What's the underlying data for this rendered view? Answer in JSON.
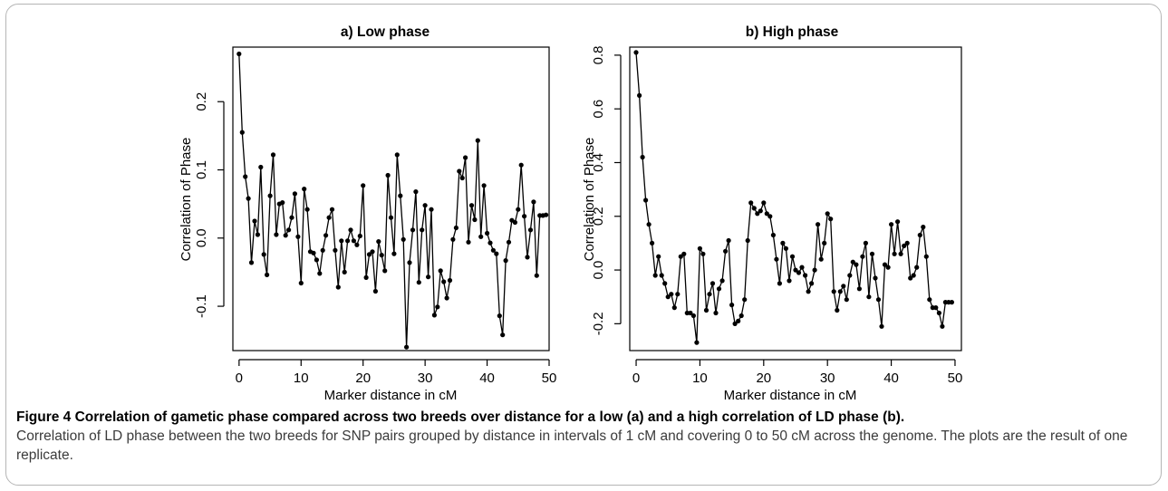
{
  "figure": {
    "label": "Figure 4",
    "caption_title": "Correlation of gametic phase compared across two breeds over distance for a low (a) and a high correlation of LD phase (b).",
    "caption_text": "Correlation of LD phase between the two breeds for SNP pairs grouped by distance in intervals of 1 cM and covering 0 to 50 cM across the genome. The plots are the result of one replicate."
  },
  "chart_data": [
    {
      "type": "line",
      "title": "a) Low phase",
      "xlabel": "Marker distance in cM",
      "ylabel": "Correlation of Phase",
      "xlim": [
        -1,
        50
      ],
      "ylim": [
        -0.165,
        0.28
      ],
      "xticks": [
        0,
        10,
        20,
        30,
        40,
        50
      ],
      "yticks": [
        -0.1,
        0.0,
        0.1,
        0.2
      ],
      "ytick_labels": [
        "-0.1",
        "0.0",
        "0.1",
        "0.2"
      ],
      "grid": false,
      "x": [
        0,
        0.5,
        1,
        1.5,
        2,
        2.5,
        3,
        3.5,
        4,
        4.5,
        5,
        5.5,
        6,
        6.5,
        7,
        7.5,
        8,
        8.5,
        9,
        9.5,
        10,
        10.5,
        11,
        11.5,
        12,
        12.5,
        13,
        13.5,
        14,
        14.5,
        15,
        15.5,
        16,
        16.5,
        17,
        17.5,
        18,
        18.5,
        19,
        19.5,
        20,
        20.5,
        21,
        21.5,
        22,
        22.5,
        23,
        23.5,
        24,
        24.5,
        25,
        25.5,
        26,
        26.5,
        27,
        27.5,
        28,
        28.5,
        29,
        29.5,
        30,
        30.5,
        31,
        31.5,
        32,
        32.5,
        33,
        33.5,
        34,
        34.5,
        35,
        35.5,
        36,
        36.5,
        37,
        37.5,
        38,
        38.5,
        39,
        39.5,
        40,
        40.5,
        41,
        41.5,
        42,
        42.5,
        43,
        43.5,
        44,
        44.5,
        45,
        45.5,
        46,
        46.5,
        47,
        47.5,
        48,
        48.5,
        49,
        49.5
      ],
      "series": [
        {
          "values": [
            0.27,
            0.155,
            0.09,
            0.058,
            -0.036,
            0.025,
            0.005,
            0.104,
            -0.024,
            -0.054,
            0.062,
            0.122,
            0.005,
            0.05,
            0.052,
            0.004,
            0.012,
            0.03,
            0.065,
            0.002,
            -0.066,
            0.072,
            0.042,
            -0.02,
            -0.022,
            -0.032,
            -0.052,
            -0.018,
            0.004,
            0.03,
            0.042,
            -0.018,
            -0.072,
            -0.004,
            -0.05,
            -0.004,
            0.012,
            -0.004,
            -0.01,
            0.003,
            0.077,
            -0.058,
            -0.024,
            -0.02,
            -0.078,
            -0.005,
            -0.025,
            -0.048,
            0.092,
            0.03,
            -0.023,
            0.122,
            0.062,
            -0.002,
            -0.16,
            -0.036,
            0.012,
            0.068,
            -0.065,
            0.012,
            0.048,
            -0.057,
            0.042,
            -0.113,
            -0.101,
            -0.048,
            -0.064,
            -0.088,
            -0.062,
            -0.002,
            0.015,
            0.098,
            0.088,
            0.118,
            -0.006,
            0.048,
            0.027,
            0.143,
            0.002,
            0.077,
            0.007,
            -0.007,
            -0.018,
            -0.023,
            -0.114,
            -0.142,
            -0.033,
            -0.006,
            0.026,
            0.023,
            0.042,
            0.107,
            0.032,
            -0.028,
            0.012,
            0.053,
            -0.055,
            0.033,
            0.033,
            0.034
          ]
        }
      ]
    },
    {
      "type": "line",
      "title": "b) High phase",
      "xlabel": "Marker distance in cM",
      "ylabel": "Correlation of Phase",
      "xlim": [
        -1,
        51
      ],
      "ylim": [
        -0.3,
        0.83
      ],
      "xticks": [
        0,
        10,
        20,
        30,
        40,
        50
      ],
      "yticks": [
        -0.2,
        0.0,
        0.2,
        0.4,
        0.6,
        0.8
      ],
      "ytick_labels": [
        "-0.2",
        "0.0",
        "0.2",
        "0.4",
        "0.6",
        "0.8"
      ],
      "grid": false,
      "x": [
        0,
        0.5,
        1,
        1.5,
        2,
        2.5,
        3,
        3.5,
        4,
        4.5,
        5,
        5.5,
        6,
        6.5,
        7,
        7.5,
        8,
        8.5,
        9,
        9.5,
        10,
        10.5,
        11,
        11.5,
        12,
        12.5,
        13,
        13.5,
        14,
        14.5,
        15,
        15.5,
        16,
        16.5,
        17,
        17.5,
        18,
        18.5,
        19,
        19.5,
        20,
        20.5,
        21,
        21.5,
        22,
        22.5,
        23,
        23.5,
        24,
        24.5,
        25,
        25.5,
        26,
        26.5,
        27,
        27.5,
        28,
        28.5,
        29,
        29.5,
        30,
        30.5,
        31,
        31.5,
        32,
        32.5,
        33,
        33.5,
        34,
        34.5,
        35,
        35.5,
        36,
        36.5,
        37,
        37.5,
        38,
        38.5,
        39,
        39.5,
        40,
        40.5,
        41,
        41.5,
        42,
        42.5,
        43,
        43.5,
        44,
        44.5,
        45,
        45.5,
        46,
        46.5,
        47,
        47.5,
        48,
        48.5,
        49,
        49.5
      ],
      "series": [
        {
          "values": [
            0.81,
            0.65,
            0.42,
            0.26,
            0.17,
            0.1,
            -0.02,
            0.05,
            -0.02,
            -0.05,
            -0.1,
            -0.09,
            -0.14,
            -0.09,
            0.05,
            0.06,
            -0.16,
            -0.16,
            -0.17,
            -0.27,
            0.08,
            0.06,
            -0.15,
            -0.09,
            -0.05,
            -0.16,
            -0.07,
            -0.04,
            0.07,
            0.11,
            -0.13,
            -0.2,
            -0.19,
            -0.17,
            -0.11,
            0.11,
            0.25,
            0.23,
            0.21,
            0.22,
            0.25,
            0.21,
            0.2,
            0.13,
            0.04,
            -0.05,
            0.1,
            0.08,
            -0.04,
            0.05,
            0.0,
            -0.01,
            0.01,
            -0.02,
            -0.08,
            -0.05,
            0.0,
            0.17,
            0.04,
            0.1,
            0.21,
            0.19,
            -0.08,
            -0.15,
            -0.08,
            -0.06,
            -0.11,
            -0.02,
            0.03,
            0.02,
            -0.07,
            0.05,
            0.1,
            -0.1,
            0.06,
            -0.03,
            -0.11,
            -0.21,
            0.02,
            0.01,
            0.17,
            0.06,
            0.18,
            0.06,
            0.09,
            0.1,
            -0.03,
            -0.02,
            0.01,
            0.13,
            0.16,
            0.05,
            -0.11,
            -0.14,
            -0.14,
            -0.16,
            -0.21,
            -0.12,
            -0.12,
            -0.12
          ]
        }
      ]
    }
  ]
}
